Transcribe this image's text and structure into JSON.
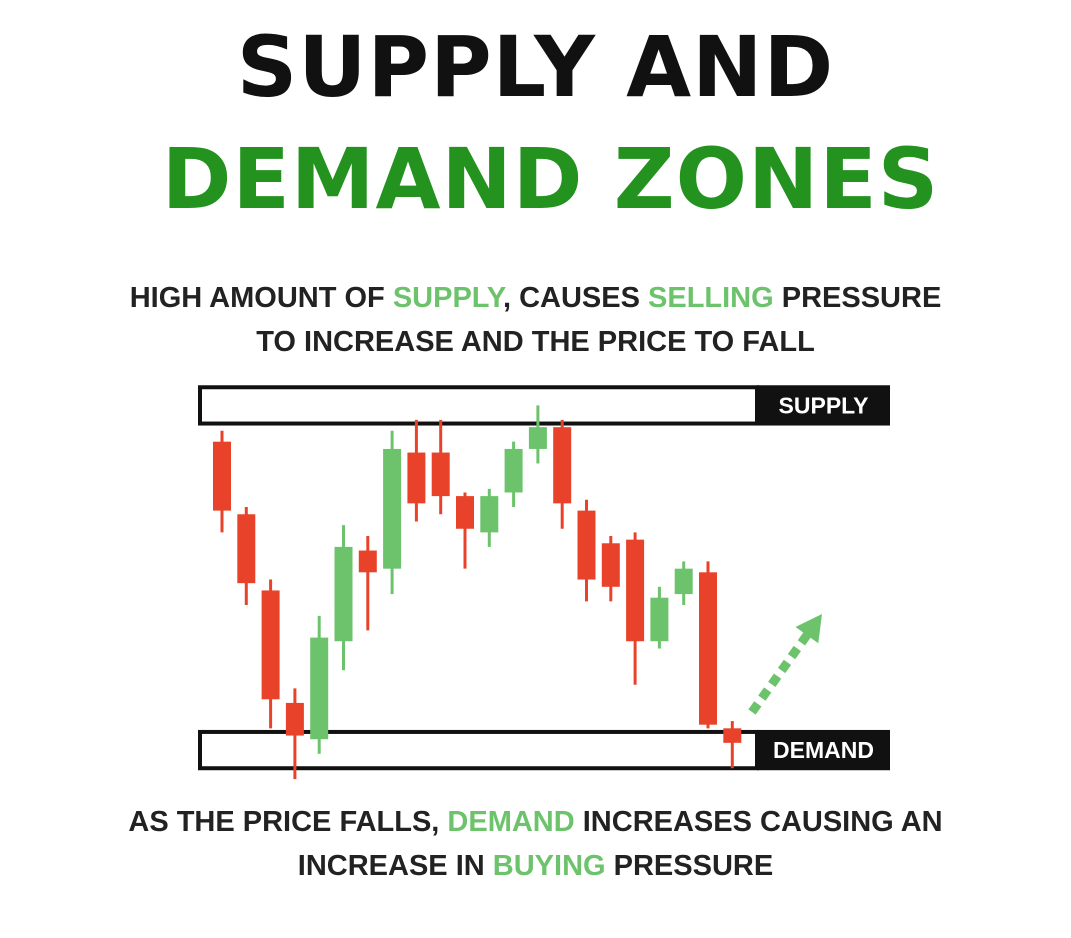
{
  "title": {
    "line1": "SUPPLY AND",
    "line2": "DEMAND ZONES"
  },
  "caption_top": {
    "line1": {
      "p1": "HIGH AMOUNT OF ",
      "h1": "SUPPLY",
      "p2": ", CAUSES ",
      "h2": "SELLING",
      "p3": " PRESSURE"
    },
    "line2": "TO INCREASE AND THE PRICE TO FALL"
  },
  "caption_bottom": {
    "line1": {
      "p1": "AS THE PRICE FALLS, ",
      "h1": "DEMAND",
      "p2": " INCREASES CAUSING AN"
    },
    "line2": {
      "p1": "INCREASE IN ",
      "h1": "BUYING",
      "p2": " PRESSURE"
    }
  },
  "zones": {
    "supply_label": "SUPPLY",
    "demand_label": "DEMAND"
  },
  "colors": {
    "bull": "#6cc36b",
    "bear": "#e8432a",
    "ink": "#111111",
    "title_green": "#23921f",
    "arrow": "#6cc36b"
  },
  "chart_data": {
    "type": "candlestick",
    "candles": [
      {
        "o": 91,
        "c": 72,
        "h": 94,
        "l": 66
      },
      {
        "o": 71,
        "c": 52,
        "h": 73,
        "l": 46
      },
      {
        "o": 50,
        "c": 20,
        "h": 53,
        "l": 12
      },
      {
        "o": 19,
        "c": 10,
        "h": 23,
        "l": -2
      },
      {
        "o": 9,
        "c": 37,
        "h": 43,
        "l": 5
      },
      {
        "o": 36,
        "c": 62,
        "h": 68,
        "l": 28
      },
      {
        "o": 61,
        "c": 55,
        "h": 65,
        "l": 39
      },
      {
        "o": 56,
        "c": 89,
        "h": 94,
        "l": 49
      },
      {
        "o": 88,
        "c": 74,
        "h": 97,
        "l": 69
      },
      {
        "o": 88,
        "c": 76,
        "h": 97,
        "l": 71
      },
      {
        "o": 76,
        "c": 67,
        "h": 77,
        "l": 56
      },
      {
        "o": 66,
        "c": 76,
        "h": 78,
        "l": 62
      },
      {
        "o": 77,
        "c": 89,
        "h": 91,
        "l": 73
      },
      {
        "o": 89,
        "c": 95,
        "h": 101,
        "l": 85
      },
      {
        "o": 95,
        "c": 74,
        "h": 97,
        "l": 67
      },
      {
        "o": 72,
        "c": 53,
        "h": 75,
        "l": 47
      },
      {
        "o": 63,
        "c": 51,
        "h": 65,
        "l": 47
      },
      {
        "o": 64,
        "c": 36,
        "h": 66,
        "l": 24
      },
      {
        "o": 36,
        "c": 48,
        "h": 51,
        "l": 34
      },
      {
        "o": 49,
        "c": 56,
        "h": 58,
        "l": 46
      },
      {
        "o": 55,
        "c": 13,
        "h": 58,
        "l": 12
      },
      {
        "o": 12,
        "c": 8,
        "h": 14,
        "l": 1
      }
    ],
    "supply_zone": [
      96,
      106
    ],
    "demand_zone": [
      1,
      11
    ],
    "ylim": [
      -5,
      108
    ]
  }
}
